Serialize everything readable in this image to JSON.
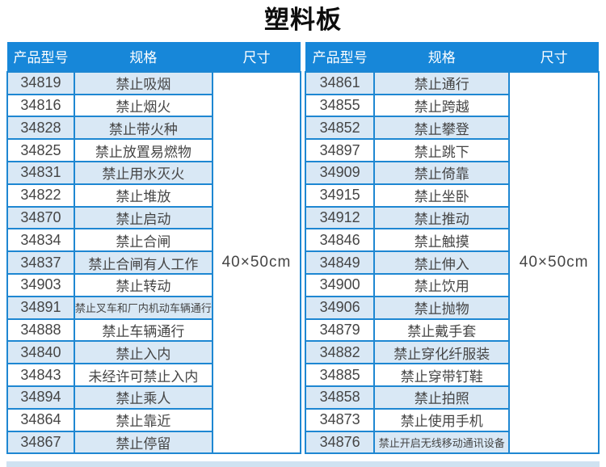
{
  "title": "塑料板",
  "columns": [
    "产品型号",
    "规格",
    "尺寸"
  ],
  "tables": [
    {
      "size": "40×50cm",
      "rows": [
        {
          "model": "34819",
          "spec": "禁止吸烟"
        },
        {
          "model": "34816",
          "spec": "禁止烟火"
        },
        {
          "model": "34828",
          "spec": "禁止带火种"
        },
        {
          "model": "34825",
          "spec": "禁止放置易燃物"
        },
        {
          "model": "34831",
          "spec": "禁止用水灭火"
        },
        {
          "model": "34822",
          "spec": "禁止堆放"
        },
        {
          "model": "34870",
          "spec": "禁止启动"
        },
        {
          "model": "34834",
          "spec": "禁止合闸"
        },
        {
          "model": "34837",
          "spec": "禁止合闸有人工作"
        },
        {
          "model": "34903",
          "spec": "禁止转动"
        },
        {
          "model": "34891",
          "spec": "禁止叉车和厂内机动车辆通行"
        },
        {
          "model": "34888",
          "spec": "禁止车辆通行"
        },
        {
          "model": "34840",
          "spec": "禁止入内"
        },
        {
          "model": "34843",
          "spec": "未经许可禁止入内"
        },
        {
          "model": "34894",
          "spec": "禁止乘人"
        },
        {
          "model": "34864",
          "spec": "禁止靠近"
        },
        {
          "model": "34867",
          "spec": "禁止停留"
        }
      ]
    },
    {
      "size": "40×50cm",
      "rows": [
        {
          "model": "34861",
          "spec": "禁止通行"
        },
        {
          "model": "34855",
          "spec": "禁止跨越"
        },
        {
          "model": "34852",
          "spec": "禁止攀登"
        },
        {
          "model": "34897",
          "spec": "禁止跳下"
        },
        {
          "model": "34909",
          "spec": "禁止倚靠"
        },
        {
          "model": "34915",
          "spec": "禁止坐卧"
        },
        {
          "model": "34912",
          "spec": "禁止推动"
        },
        {
          "model": "34846",
          "spec": "禁止触摸"
        },
        {
          "model": "34849",
          "spec": "禁止伸入"
        },
        {
          "model": "34900",
          "spec": "禁止饮用"
        },
        {
          "model": "34906",
          "spec": "禁止抛物"
        },
        {
          "model": "34879",
          "spec": "禁止戴手套"
        },
        {
          "model": "34882",
          "spec": "禁止穿化纤服装"
        },
        {
          "model": "34885",
          "spec": "禁止穿带钉鞋"
        },
        {
          "model": "34858",
          "spec": "禁止拍照"
        },
        {
          "model": "34873",
          "spec": "禁止使用手机"
        },
        {
          "model": "34876",
          "spec": "禁止开启无线移动通讯设备"
        }
      ]
    }
  ],
  "colors": {
    "header_bg": "#1787d9",
    "border": "#1e87d2",
    "alt_row_bg": "#d9e8f5",
    "cutoff_bg": "#cfe2f1"
  }
}
